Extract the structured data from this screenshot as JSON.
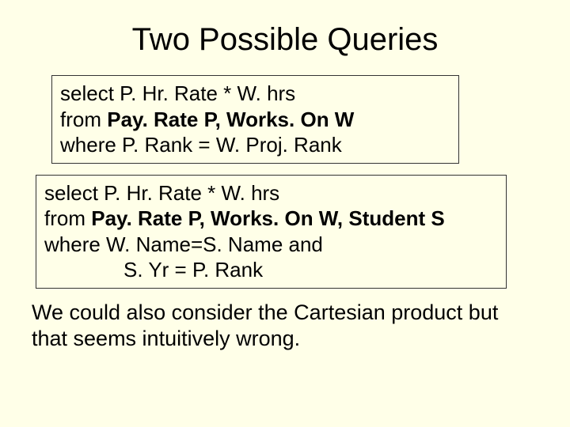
{
  "background_color": "#ffffe8",
  "title_fontsize": 40,
  "body_fontsize": 26,
  "border_color": "#333333",
  "text_color": "#000000",
  "title": "Two Possible Queries",
  "query1": {
    "l1_kw": "select",
    "l1_rest": " P. Hr. Rate * W. hrs",
    "l2_kw": "from ",
    "l2_bold": "Pay. Rate P, Works. On W",
    "l3_kw": "where",
    "l3_rest": " P. Rank = W. Proj. Rank"
  },
  "query2": {
    "l1_kw": "select",
    "l1_rest": " P. Hr. Rate * W. hrs",
    "l2_kw": "from ",
    "l2_bold": "Pay. Rate P, Works. On W,  Student S",
    "l3_kw": "where",
    "l3_rest": " W. Name=S. Name and",
    "l4": "S. Yr = P. Rank"
  },
  "caption": "We could also consider the Cartesian product but that seems intuitively wrong."
}
